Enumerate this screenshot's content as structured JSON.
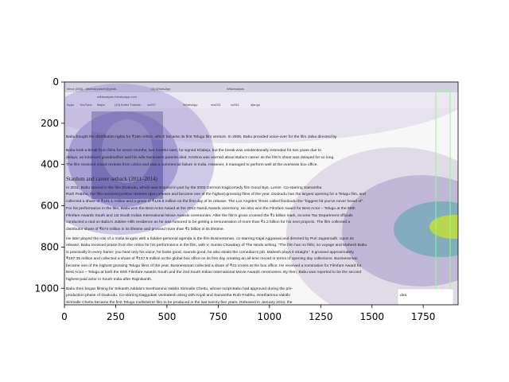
{
  "chart_data": {
    "type": "image",
    "xlim": [
      0,
      1920
    ],
    "ylim": [
      1080,
      0
    ],
    "xticks": [
      0,
      250,
      500,
      750,
      1000,
      1250,
      1500,
      1750
    ],
    "yticks": [
      0,
      200,
      400,
      600,
      800,
      1000
    ]
  },
  "screenshot": {
    "tabs": [
      "Inbox (595) - aishwaryadutt@gmail...",
      "(2) WhatsApp",
      "Wikianalysis"
    ],
    "url": "wikianalysis.herokuapp.com",
    "bookmarks": [
      "Apps",
      "YouTube",
      "Maps",
      "(43) flutter Tutorial...",
      "cs297",
      "WhatsApp",
      "ma203",
      "cs281",
      "django"
    ],
    "heading": "Stardom and career setback (2011–2014)",
    "lines": [
      "Babu bought the distribution rights for ₹185 million, which became its first Telugu film venture. In 2008, Babu provided voice-over for the film Jalsa directed by",
      "Babu took a break from films for seven months; two months later, he signed Khaleja, but the break was unintentionally extended for two years due to",
      "delays, as Krishna's grandmother and his wife Namrata's parents died. Krishna was worried about Babu's career as the film's shoot was delayed for so long.",
      "The film received mixed reviews from critics and was a commercial failure in India. However, it managed to perform well at the overseas box office.",
      "In 2011, Babu starred in the film Dookudu, which was inspired in part by the 2003 German tragicomedy film Good Bye, Lenin!. Co-starring Samantha",
      "Ruth Prabhu, the film received positive reviews upon release and became one of the highest-grossing films of the year. Dookudu has the largest opening for a Telugu film, and",
      "collected a share of ₹101.1 million and a gross of ₹125.8 million on the first day of its release. The Los Angeles Times called Dookudu the \"biggest hit you've never heard of\".",
      "For his performance in the film, Babu won the Best Actor Award at the 2012 Nandi Awards ceremony. He also won the Filmfare Award for Best Actor – Telugu at the 59th",
      "Filmfare Awards South and 1st South Indian International Movie Awards ceremonies. After the film's gross crossed the ₹1 billion mark, Income Tax Department officials",
      "conducted a raid on Babu's Jubilee Hills residence as he was rumored to be getting a remuneration of more than ₹1.2 billion for his next projects. The film collected a",
      "distributor share of ₹574 million in its lifetime and grossed more than ₹1 billion in its lifetime.",
      "He later played the role of a mafia kingpin with a hidden personal agenda in the film Businessman, co-starring Kajal Aggarwal and directed by Puri Jagannadh. Upon its",
      "release, Babu received praise from the critics for his performance in the film, with V. Sunita Chowdary of The Hindu writing, \"The film has no frills; no voyage and Mahesh Babu",
      "is practically in every frame; you hear only his voice, he looks good, sounds good, he also steals the comedian's job. Mahesh plays it straight.\" It grossed approximately",
      "₹187.35 million and collected a share of ₹137.8 million at the global box office on its first day creating an all-time record in terms of opening day collections. Businessman",
      "became one of the highest grossing Telugu films of the year. Businessman collected a share of ₹41 crores at the box office. He received a nomination for Filmfare Award for",
      "Best Actor – Telugu at both the 60th Filmfare Awards South and the 2nd South Indian International Movie Awards ceremonies. By then, Babu was reported to be the second",
      "highest-paid actor in South India after Rajinikanth.",
      "Babu then began filming for Srikanth Addala's Seethamma Vakitlo Sirimalle Chettu, whose script Babu had approved during the pre-",
      "production phase of Dookudu. Co-starring Daggubati Venkatesh along with Anjali and Samantha Ruth Prabhu, Seethamma Vakitlo",
      "Sirimalle Chettu became the first Telugu multistarrer film to be produced in the last twenty-five years. Released in January 2013, the"
    ],
    "ad_text": "dea"
  }
}
